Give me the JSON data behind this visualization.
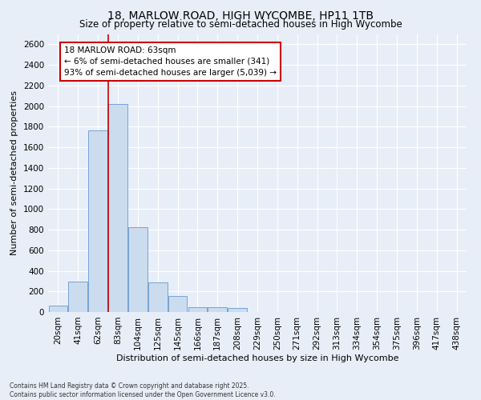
{
  "title_line1": "18, MARLOW ROAD, HIGH WYCOMBE, HP11 1TB",
  "title_line2": "Size of property relative to semi-detached houses in High Wycombe",
  "xlabel": "Distribution of semi-detached houses by size in High Wycombe",
  "ylabel": "Number of semi-detached properties",
  "footnote": "Contains HM Land Registry data © Crown copyright and database right 2025.\nContains public sector information licensed under the Open Government Licence v3.0.",
  "categories": [
    "20sqm",
    "41sqm",
    "62sqm",
    "83sqm",
    "104sqm",
    "125sqm",
    "145sqm",
    "166sqm",
    "187sqm",
    "208sqm",
    "229sqm",
    "250sqm",
    "271sqm",
    "292sqm",
    "313sqm",
    "334sqm",
    "354sqm",
    "375sqm",
    "396sqm",
    "417sqm",
    "438sqm"
  ],
  "values": [
    60,
    295,
    1760,
    2020,
    820,
    290,
    155,
    50,
    45,
    35,
    0,
    0,
    0,
    0,
    0,
    0,
    0,
    0,
    0,
    0,
    0
  ],
  "bar_color": "#ccdcef",
  "bar_edge_color": "#6699cc",
  "vline_color": "#cc0000",
  "vline_x": 2,
  "annotation_text": "18 MARLOW ROAD: 63sqm\n← 6% of semi-detached houses are smaller (341)\n93% of semi-detached houses are larger (5,039) →",
  "ylim": [
    0,
    2700
  ],
  "yticks": [
    0,
    200,
    400,
    600,
    800,
    1000,
    1200,
    1400,
    1600,
    1800,
    2000,
    2200,
    2400,
    2600
  ],
  "background_color": "#e8eef8",
  "grid_color": "#ffffff",
  "title_fontsize": 10,
  "subtitle_fontsize": 8.5,
  "axis_label_fontsize": 8,
  "tick_fontsize": 7.5,
  "annot_fontsize": 7.5
}
